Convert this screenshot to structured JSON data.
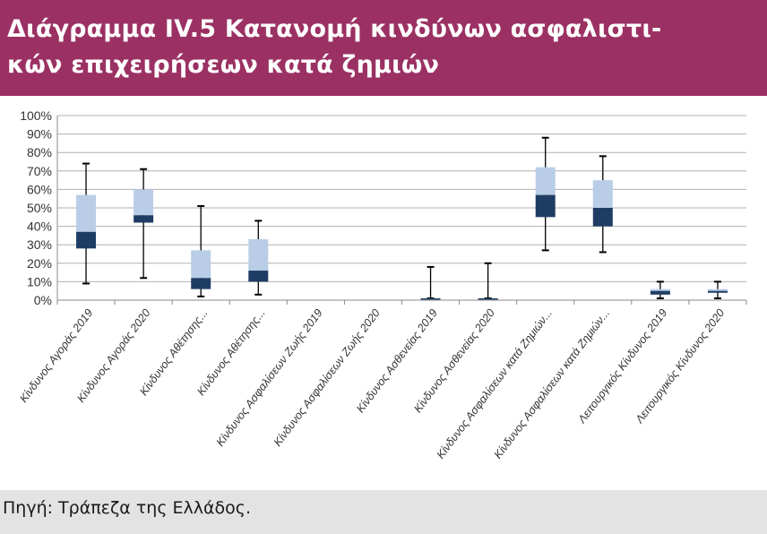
{
  "header": {
    "title": "Διάγραμμα IV.5 Κατανομή κινδύνων ασφαλιστι-\nκών επιχειρήσεων κατά ζημιών"
  },
  "footer": {
    "source": "Πηγή: Τράπεζα της Ελλάδος."
  },
  "colors": {
    "title_bg": "#9b3163",
    "upper_box": "#b9cde6",
    "lower_box": "#1f3d64",
    "whisker": "#000000",
    "grid": "#b0b0b0",
    "source_bg": "#e3e3e3"
  },
  "chart_data": {
    "type": "boxplot",
    "title": "",
    "xlabel": "",
    "ylabel": "",
    "ylim": [
      0,
      100
    ],
    "y_ticks": [
      "0%",
      "10%",
      "20%",
      "30%",
      "40%",
      "50%",
      "60%",
      "70%",
      "80%",
      "90%",
      "100%"
    ],
    "grid": true,
    "categories": [
      "Κίνδυνος Αγοράς 2019",
      "Κίνδυνος Αγοράς 2020",
      "Κίνδυνος Αθέτησης...",
      "Κίνδυνος Αθέτησης...",
      "Κίνδυνος Ασφαλίσεων Ζωής 2019",
      "Κίνδυνος Ασφαλίσεων Ζωής 2020",
      "Κίνδυνος Ασθενείας 2019",
      "Κίνδυνος Ασθενείας 2020",
      "Κίνδυνος Ασφαλίσεων κατά Ζημιών...",
      "Κίνδυνος Ασφαλίσεων κατά Ζημιών...",
      "Λειτουργικός Κίνδυνος 2019",
      "Λειτουργικός Κίνδυνος 2020"
    ],
    "boxes": [
      {
        "min": 9,
        "q1": 28,
        "median": 37,
        "q3": 57,
        "max": 74
      },
      {
        "min": 12,
        "q1": 42,
        "median": 46,
        "q3": 60,
        "max": 71
      },
      {
        "min": 2,
        "q1": 6,
        "median": 12,
        "q3": 27,
        "max": 51
      },
      {
        "min": 3,
        "q1": 10,
        "median": 16,
        "q3": 33,
        "max": 43
      },
      null,
      null,
      {
        "min": 1,
        "q1": 1,
        "median": 1,
        "q3": 1,
        "max": 18
      },
      {
        "min": 1,
        "q1": 1,
        "median": 1,
        "q3": 1,
        "max": 20
      },
      {
        "min": 27,
        "q1": 45,
        "median": 57,
        "q3": 72,
        "max": 88
      },
      {
        "min": 26,
        "q1": 40,
        "median": 50,
        "q3": 65,
        "max": 78
      },
      {
        "min": 1,
        "q1": 3,
        "median": 5,
        "q3": 6,
        "max": 10
      },
      {
        "min": 1,
        "q1": 4,
        "median": 5,
        "q3": 6,
        "max": 10
      }
    ]
  }
}
